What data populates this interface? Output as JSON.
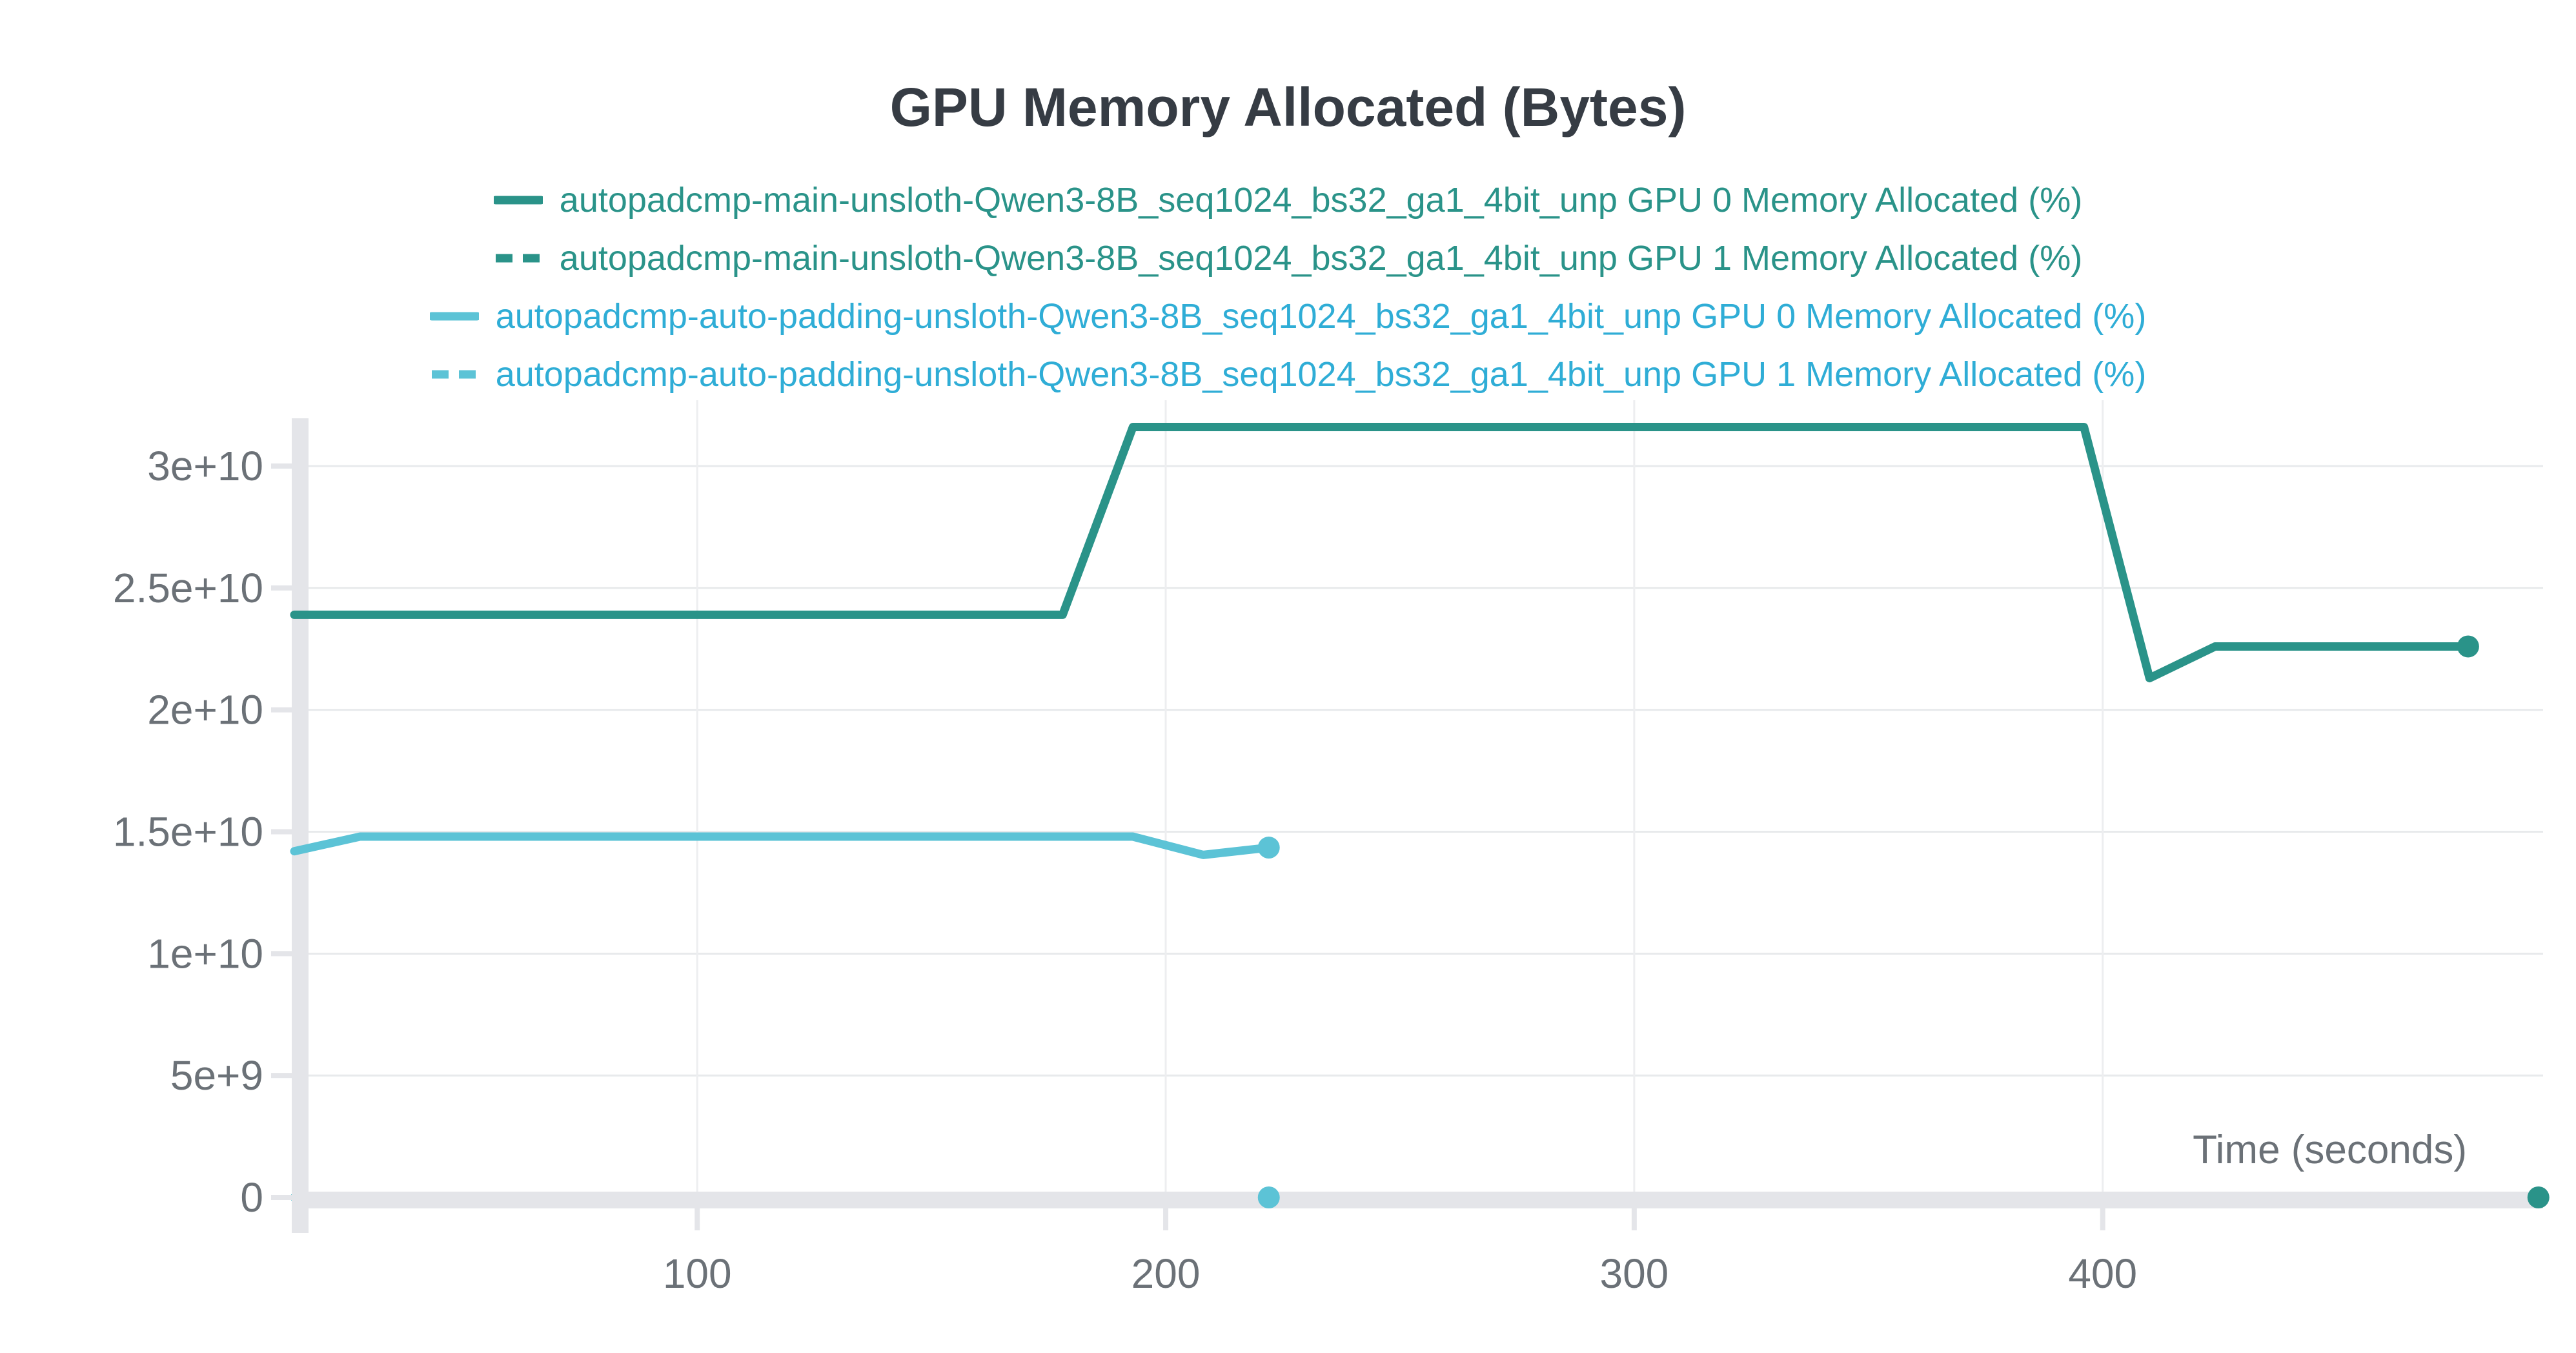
{
  "palette": {
    "teal": "#2a9389",
    "light_blue": "#5cc3d6",
    "legend_blue_text": "#2fadd6",
    "title_text": "#363c44",
    "axis_text": "#6b7177",
    "grid_h": "#e8eaec",
    "grid_v": "#edeef0",
    "axis_band": "#e4e5e9"
  },
  "chart_data": {
    "type": "line",
    "title": "GPU Memory Allocated (Bytes)",
    "xlabel": "Time (seconds)",
    "grid": true,
    "legend_position": "top-center",
    "xlim": [
      14,
      494
    ],
    "ylim": [
      0,
      32700000000
    ],
    "xticks": [
      100,
      200,
      300,
      400
    ],
    "yticks": [
      {
        "label": "0",
        "value": 0
      },
      {
        "label": "5e+9",
        "value": 5000000000
      },
      {
        "label": "1e+10",
        "value": 10000000000
      },
      {
        "label": "1.5e+10",
        "value": 15000000000
      },
      {
        "label": "2e+10",
        "value": 20000000000
      },
      {
        "label": "2.5e+10",
        "value": 25000000000
      },
      {
        "label": "3e+10",
        "value": 30000000000
      }
    ],
    "series": [
      {
        "legend": "autopadcmp-main-unsloth-Qwen3-8B_seq1024_bs32_ga1_4bit_unp GPU 0 Memory Allocated (%)",
        "color": "#2a9389",
        "legend_color": "#2a9389",
        "dash": "solid",
        "layer": "over",
        "end_dot": true,
        "points": [
          [
            14,
            23900000000
          ],
          [
            178,
            23900000000
          ],
          [
            193,
            31600000000
          ],
          [
            396,
            31600000000
          ],
          [
            410,
            21300000000
          ],
          [
            424,
            22600000000
          ],
          [
            478,
            22600000000
          ]
        ]
      },
      {
        "legend": "autopadcmp-main-unsloth-Qwen3-8B_seq1024_bs32_ga1_4bit_unp GPU 1 Memory Allocated (%)",
        "color": "#2a9389",
        "legend_color": "#2a9389",
        "dash": "dashed",
        "layer": "under",
        "end_dot": true,
        "points": [
          [
            14,
            0
          ],
          [
            493,
            0
          ]
        ]
      },
      {
        "legend": "autopadcmp-auto-padding-unsloth-Qwen3-8B_seq1024_bs32_ga1_4bit_unp GPU 0 Memory Allocated (%)",
        "color": "#5cc3d6",
        "legend_color": "#2fadd6",
        "dash": "solid",
        "layer": "over",
        "end_dot": true,
        "points": [
          [
            14,
            14200000000
          ],
          [
            28,
            14800000000
          ],
          [
            193,
            14800000000
          ],
          [
            208,
            14050000000
          ],
          [
            222,
            14350000000
          ]
        ]
      },
      {
        "legend": "autopadcmp-auto-padding-unsloth-Qwen3-8B_seq1024_bs32_ga1_4bit_unp GPU 1 Memory Allocated (%)",
        "color": "#5cc3d6",
        "legend_color": "#2fadd6",
        "dash": "dashed",
        "layer": "under",
        "end_dot": true,
        "points": [
          [
            14,
            0
          ],
          [
            222,
            0
          ]
        ]
      }
    ]
  }
}
